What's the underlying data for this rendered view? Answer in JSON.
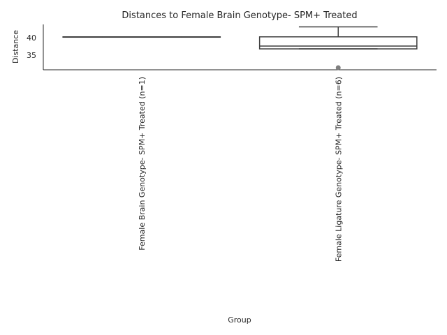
{
  "chart_data": {
    "type": "box",
    "title": "Distances to Female Brain Genotype- SPM+ Treated",
    "xlabel": "Group",
    "ylabel": "Distance",
    "ylim": [
      30.9,
      43.7
    ],
    "yticks": [
      35,
      40
    ],
    "grid": false,
    "legend": "none",
    "categories": [
      "Female Brain Genotype- SPM+ Treated (n=1)",
      "Female Ligature Genotype- SPM+ Treated (n=6)"
    ],
    "boxes": [
      {
        "category": "Female Brain Genotype- SPM+ Treated (n=1)",
        "whisker_low": 40.2,
        "q1": 40.2,
        "median": 40.2,
        "q3": 40.2,
        "whisker_high": 40.2,
        "outliers": []
      },
      {
        "category": "Female Ligature Genotype- SPM+ Treated (n=6)",
        "whisker_low": 36.8,
        "q1": 36.8,
        "median": 37.6,
        "q3": 40.2,
        "whisker_high": 43.0,
        "outliers": [
          31.5
        ]
      }
    ],
    "colors": {
      "box_edge": "#3f3f3f",
      "axis": "#262626",
      "outlier": "#7f7f7f"
    }
  }
}
